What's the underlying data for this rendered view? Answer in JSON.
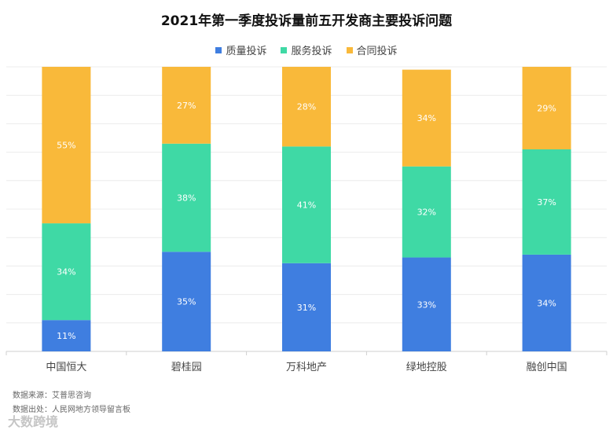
{
  "chart_data": {
    "type": "bar",
    "stacked": true,
    "title": "2021年第一季度投诉量前五开发商主要投诉问题",
    "categories": [
      "中国恒大",
      "碧桂园",
      "万科地产",
      "绿地控股",
      "融创中国"
    ],
    "series": [
      {
        "name": "质量投诉",
        "color": "#3f7ee0",
        "values": [
          11,
          35,
          31,
          33,
          34
        ],
        "labels": [
          "11%",
          "35%",
          "31%",
          "33%",
          "34%"
        ]
      },
      {
        "name": "服务投诉",
        "color": "#3fd9a5",
        "values": [
          34,
          38,
          41,
          32,
          37
        ],
        "labels": [
          "34%",
          "38%",
          "41%",
          "32%",
          "37%"
        ]
      },
      {
        "name": "合同投诉",
        "color": "#f9b93a",
        "values": [
          55,
          27,
          28,
          34,
          29
        ],
        "labels": [
          "55%",
          "27%",
          "28%",
          "34%",
          "29%"
        ]
      }
    ],
    "ylim": [
      0,
      100
    ],
    "grid": true,
    "legend": "top-center"
  },
  "footer": {
    "source": "数据来源：艾普思咨询",
    "origin": "数据出处：人民网地方领导留言板"
  },
  "watermark": "大数跨境"
}
